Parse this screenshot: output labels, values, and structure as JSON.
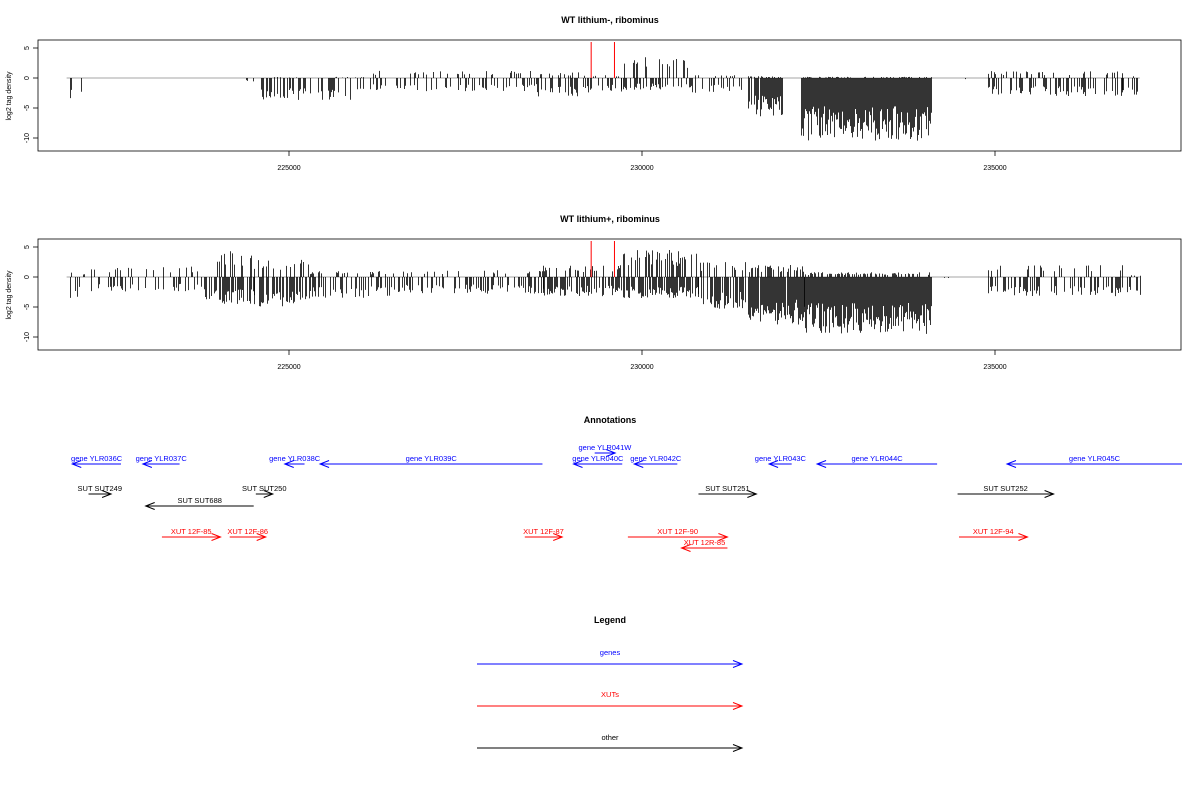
{
  "panels": [
    {
      "title": "WT lithium-, ribominus",
      "ylabel": "log2 tag density",
      "y_ticks": [
        "5",
        "0",
        "-5",
        "-10"
      ],
      "x_ticks": [
        "225000",
        "230000",
        "235000"
      ]
    },
    {
      "title": "WT lithium+, ribominus",
      "ylabel": "log2 tag density",
      "y_ticks": [
        "5",
        "0",
        "-5",
        "-10"
      ],
      "x_ticks": [
        "225000",
        "230000",
        "235000"
      ]
    }
  ],
  "annotations_title": "Annotations",
  "legend_title": "Legend",
  "legend": [
    {
      "label": "genes",
      "color": "#0000ff"
    },
    {
      "label": "XUTs",
      "color": "#ff0000"
    },
    {
      "label": "other",
      "color": "#000000"
    }
  ],
  "annotation_items": [
    {
      "label": "gene YLR036C",
      "type": "gene",
      "start": 221930,
      "end": 222620,
      "strand": "-"
    },
    {
      "label": "gene YLR037C",
      "type": "gene",
      "start": 222930,
      "end": 223450,
      "strand": "-"
    },
    {
      "label": "gene YLR038C",
      "type": "gene",
      "start": 224940,
      "end": 225220,
      "strand": "-"
    },
    {
      "label": "gene YLR039C",
      "type": "gene",
      "start": 225440,
      "end": 228590,
      "strand": "-"
    },
    {
      "label": "gene YLR040C",
      "type": "gene",
      "start": 229030,
      "end": 229720,
      "strand": "-"
    },
    {
      "label": "gene YLR041W",
      "type": "gene",
      "start": 229330,
      "end": 229620,
      "strand": "+"
    },
    {
      "label": "gene YLR042C",
      "type": "gene",
      "start": 229890,
      "end": 230500,
      "strand": "-"
    },
    {
      "label": "gene YLR043C",
      "type": "gene",
      "start": 231800,
      "end": 232120,
      "strand": "-"
    },
    {
      "label": "gene YLR044C",
      "type": "gene",
      "start": 232480,
      "end": 234180,
      "strand": "-"
    },
    {
      "label": "gene YLR045C",
      "type": "gene",
      "start": 235170,
      "end": 237690,
      "strand": "-"
    },
    {
      "label": "SUT SUT249",
      "type": "other",
      "start": 222160,
      "end": 222480,
      "strand": "+"
    },
    {
      "label": "SUT SUT250",
      "type": "other",
      "start": 224530,
      "end": 224770,
      "strand": "+"
    },
    {
      "label": "SUT SUT688",
      "type": "other",
      "start": 222970,
      "end": 224500,
      "strand": "-"
    },
    {
      "label": "SUT SUT251",
      "type": "other",
      "start": 230800,
      "end": 231620,
      "strand": "+"
    },
    {
      "label": "SUT SUT252",
      "type": "other",
      "start": 234470,
      "end": 235830,
      "strand": "+"
    },
    {
      "label": "XUT 12F-85",
      "type": "xut",
      "start": 223200,
      "end": 224030,
      "strand": "+"
    },
    {
      "label": "XUT 12F-86",
      "type": "xut",
      "start": 224160,
      "end": 224670,
      "strand": "+"
    },
    {
      "label": "XUT 12F-87",
      "type": "xut",
      "start": 228340,
      "end": 228870,
      "strand": "+"
    },
    {
      "label": "XUT 12F-90",
      "type": "xut",
      "start": 229800,
      "end": 231210,
      "strand": "+"
    },
    {
      "label": "XUT 12R-85",
      "type": "xut",
      "start": 230560,
      "end": 231210,
      "strand": "-"
    },
    {
      "label": "XUT 12F-94",
      "type": "xut",
      "start": 234490,
      "end": 235460,
      "strand": "+"
    }
  ],
  "chart_data": [
    {
      "type": "bar",
      "title": "WT lithium-, ribominus",
      "xlabel": "",
      "ylabel": "log2 tag density",
      "xlim": [
        221650,
        238100
      ],
      "ylim": [
        -12,
        6
      ],
      "x_ticks": [
        225000,
        230000,
        235000
      ],
      "y_ticks": [
        5,
        0,
        -5,
        -10
      ],
      "red_markers": [
        229280,
        229610
      ],
      "segments": [
        {
          "start": 221900,
          "end": 222050,
          "neg": -3.5,
          "pos": 0,
          "density": 0.3
        },
        {
          "start": 222300,
          "end": 222600,
          "neg": -3.0,
          "pos": 2.2,
          "density": 0.05
        },
        {
          "start": 223400,
          "end": 223600,
          "neg": -2.0,
          "pos": 0,
          "density": 0.05
        },
        {
          "start": 224200,
          "end": 224600,
          "neg": -0.6,
          "pos": 2.5,
          "density": 0.04
        },
        {
          "start": 224600,
          "end": 226100,
          "neg": -3.8,
          "pos": 0.2,
          "density": 0.4
        },
        {
          "start": 226100,
          "end": 228500,
          "neg": -2.2,
          "pos": 1.2,
          "density": 0.3
        },
        {
          "start": 228500,
          "end": 229100,
          "neg": -3.2,
          "pos": 1.0,
          "density": 0.5
        },
        {
          "start": 229100,
          "end": 229700,
          "neg": -2.5,
          "pos": 0.5,
          "density": 0.4
        },
        {
          "start": 229700,
          "end": 230700,
          "neg": -2.0,
          "pos": 3.5,
          "density": 0.5
        },
        {
          "start": 230700,
          "end": 231400,
          "neg": -2.5,
          "pos": 0.5,
          "density": 0.3
        },
        {
          "start": 231500,
          "end": 231980,
          "neg": -6.5,
          "pos": 0.3,
          "density": 0.85
        },
        {
          "start": 232250,
          "end": 234100,
          "neg": -10.5,
          "pos": 0.2,
          "density": 1.0
        },
        {
          "start": 234100,
          "end": 234800,
          "neg": -0.3,
          "pos": 0.3,
          "density": 0.03
        },
        {
          "start": 234900,
          "end": 236800,
          "neg": -3.0,
          "pos": 1.2,
          "density": 0.4
        },
        {
          "start": 236800,
          "end": 237050,
          "neg": -3.0,
          "pos": 0.3,
          "density": 0.4
        }
      ]
    },
    {
      "type": "bar",
      "title": "WT lithium+, ribominus",
      "xlabel": "",
      "ylabel": "log2 tag density",
      "xlim": [
        221650,
        238100
      ],
      "ylim": [
        -12,
        6
      ],
      "x_ticks": [
        225000,
        230000,
        235000
      ],
      "y_ticks": [
        5,
        0,
        -5,
        -10
      ],
      "red_markers": [
        229280,
        229610
      ],
      "segments": [
        {
          "start": 221900,
          "end": 222200,
          "neg": -3.5,
          "pos": 0.8,
          "density": 0.3
        },
        {
          "start": 222200,
          "end": 223800,
          "neg": -2.5,
          "pos": 1.8,
          "density": 0.3
        },
        {
          "start": 223800,
          "end": 224500,
          "neg": -4.5,
          "pos": 4.5,
          "density": 0.6
        },
        {
          "start": 224500,
          "end": 225300,
          "neg": -5.0,
          "pos": 3.0,
          "density": 0.7
        },
        {
          "start": 225300,
          "end": 226500,
          "neg": -3.5,
          "pos": 1.0,
          "density": 0.4
        },
        {
          "start": 226500,
          "end": 228600,
          "neg": -2.8,
          "pos": 1.2,
          "density": 0.4
        },
        {
          "start": 228600,
          "end": 229700,
          "neg": -3.2,
          "pos": 2.0,
          "density": 0.55
        },
        {
          "start": 229700,
          "end": 230800,
          "neg": -3.5,
          "pos": 4.5,
          "density": 0.7
        },
        {
          "start": 230800,
          "end": 231500,
          "neg": -5.5,
          "pos": 2.5,
          "density": 0.7
        },
        {
          "start": 231500,
          "end": 232300,
          "neg": -8.0,
          "pos": 2.0,
          "density": 0.9
        },
        {
          "start": 232300,
          "end": 234100,
          "neg": -9.5,
          "pos": 0.8,
          "density": 1.0
        },
        {
          "start": 234100,
          "end": 234900,
          "neg": -0.3,
          "pos": 0.5,
          "density": 0.04
        },
        {
          "start": 234900,
          "end": 236800,
          "neg": -3.2,
          "pos": 2.0,
          "density": 0.45
        },
        {
          "start": 236800,
          "end": 237050,
          "neg": -3.0,
          "pos": 0.3,
          "density": 0.4
        }
      ]
    }
  ]
}
